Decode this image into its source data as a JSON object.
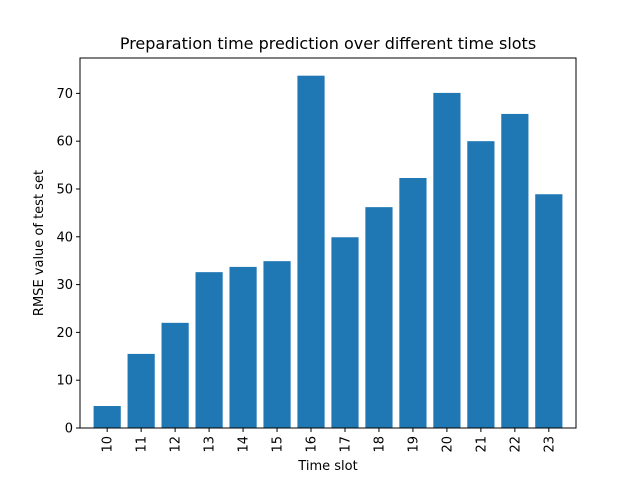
{
  "chart_data": {
    "type": "bar",
    "title": "Preparation time prediction over different time slots",
    "xlabel": "Time slot",
    "ylabel": "RMSE value of test set",
    "categories": [
      "10",
      "11",
      "12",
      "13",
      "14",
      "15",
      "16",
      "17",
      "18",
      "19",
      "20",
      "21",
      "22",
      "23"
    ],
    "values": [
      4.6,
      15.5,
      22.0,
      32.6,
      33.7,
      34.9,
      73.7,
      39.9,
      46.2,
      52.3,
      70.1,
      60.0,
      65.7,
      48.9
    ],
    "ylim": [
      0,
      77.4
    ],
    "yticks": [
      "0",
      "10",
      "20",
      "30",
      "40",
      "50",
      "60",
      "70"
    ],
    "bar_color": "#1f77b4",
    "grid": false,
    "legend": "none"
  }
}
